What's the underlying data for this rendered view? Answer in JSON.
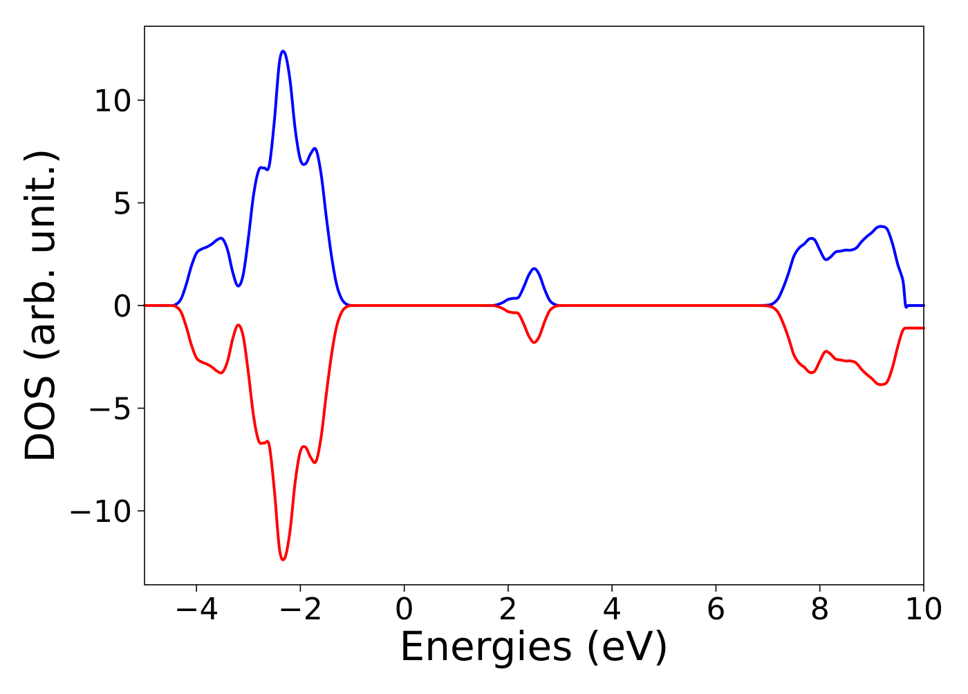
{
  "chart_data": {
    "type": "line",
    "title": "",
    "xlabel": "Energies (eV)",
    "ylabel": "DOS (arb. unit.)",
    "xlim": [
      -5,
      10
    ],
    "ylim": [
      -13.6,
      13.6
    ],
    "grid": false,
    "legend": "none",
    "x_ticks": [
      -4,
      -2,
      0,
      2,
      4,
      6,
      8,
      10
    ],
    "x_tick_labels": [
      "−4",
      "−2",
      "0",
      "2",
      "4",
      "6",
      "8",
      "10"
    ],
    "y_ticks": [
      -10,
      -5,
      0,
      5,
      10
    ],
    "y_tick_labels": [
      "−10",
      "−5",
      "0",
      "5",
      "10"
    ],
    "series": [
      {
        "color": "#0000ff",
        "x": [
          -5.0,
          -4.5,
          -4.4,
          -4.3,
          -4.2,
          -4.1,
          -4.0,
          -3.9,
          -3.8,
          -3.7,
          -3.6,
          -3.5,
          -3.4,
          -3.3,
          -3.2,
          -3.1,
          -3.0,
          -2.9,
          -2.8,
          -2.7,
          -2.6,
          -2.5,
          -2.4,
          -2.3,
          -2.2,
          -2.1,
          -2.0,
          -1.9,
          -1.8,
          -1.7,
          -1.6,
          -1.5,
          -1.4,
          -1.3,
          -1.2,
          -1.1,
          -1.0,
          -0.9,
          -0.8,
          -0.7,
          -0.6,
          -0.5,
          0.0,
          1.0,
          1.5,
          1.7,
          1.8,
          1.9,
          2.0,
          2.1,
          2.2,
          2.3,
          2.4,
          2.5,
          2.6,
          2.7,
          2.8,
          2.9,
          3.0,
          3.1,
          3.2,
          3.3,
          4.0,
          5.0,
          6.0,
          6.8,
          7.0,
          7.1,
          7.2,
          7.3,
          7.4,
          7.5,
          7.6,
          7.7,
          7.8,
          7.9,
          8.0,
          8.1,
          8.2,
          8.3,
          8.4,
          8.5,
          8.6,
          8.7,
          8.8,
          8.9,
          9.0,
          9.1,
          9.2,
          9.3,
          9.4,
          9.5,
          9.6,
          9.65,
          9.7,
          9.8,
          9.9,
          10.0
        ],
        "y": [
          0.0,
          0.0,
          0.05,
          0.3,
          1.0,
          1.9,
          2.55,
          2.75,
          2.85,
          3.0,
          3.2,
          3.25,
          2.7,
          1.6,
          0.95,
          1.5,
          3.3,
          5.4,
          6.6,
          6.7,
          6.8,
          9.0,
          11.9,
          12.3,
          11.0,
          8.6,
          7.1,
          6.9,
          7.4,
          7.6,
          6.4,
          4.3,
          2.4,
          1.0,
          0.3,
          0.05,
          0.0,
          0.0,
          0.0,
          0.0,
          0.0,
          0.0,
          0.0,
          0.0,
          0.0,
          0.0,
          0.05,
          0.15,
          0.3,
          0.35,
          0.4,
          0.9,
          1.5,
          1.8,
          1.5,
          0.8,
          0.25,
          0.05,
          0.0,
          0.0,
          0.0,
          0.0,
          0.0,
          0.0,
          0.0,
          0.0,
          0.02,
          0.1,
          0.35,
          0.9,
          1.6,
          2.4,
          2.8,
          3.0,
          3.25,
          3.2,
          2.7,
          2.25,
          2.35,
          2.6,
          2.65,
          2.7,
          2.7,
          2.8,
          3.1,
          3.35,
          3.55,
          3.8,
          3.85,
          3.7,
          3.0,
          2.0,
          1.2,
          0.0,
          0.0,
          0.0,
          0.0,
          0.0
        ],
        "y_fixed": [
          0.0,
          0.0,
          0.05,
          0.3,
          1.0,
          1.9,
          2.55,
          2.75,
          2.85,
          3.0,
          3.2,
          3.25,
          2.7,
          1.6,
          0.95,
          1.5,
          3.3,
          5.4,
          6.6,
          6.7,
          6.8,
          9.0,
          11.9,
          12.3,
          11.0,
          8.6,
          7.1,
          6.9,
          7.4,
          7.6,
          6.4,
          4.3,
          2.4,
          1.0,
          0.3,
          0.05,
          0.0,
          0.0,
          0.0,
          0.0,
          0.0,
          0.0,
          0.0,
          0.0,
          0.0,
          0.0,
          0.05,
          0.15,
          0.3,
          0.35,
          0.4,
          0.9,
          1.5,
          1.8,
          1.5,
          0.8,
          0.25,
          0.05,
          0.0,
          0.0,
          0.0,
          0.0,
          0.0,
          0.0,
          0.0,
          0.0,
          0.02,
          0.1,
          0.35,
          0.9,
          1.6,
          2.4,
          2.8,
          3.0,
          3.25,
          3.2,
          2.7,
          2.25,
          2.35,
          2.6,
          2.65,
          2.7,
          2.7,
          2.8,
          3.1,
          3.35,
          3.55,
          3.8,
          3.85,
          3.7,
          3.0,
          2.0,
          1.2,
          0.0,
          0.0,
          0.0,
          0.0,
          0.0
        ]
      },
      {
        "color": "#ff0000",
        "x": [
          -5.0,
          -4.5,
          -4.4,
          -4.3,
          -4.2,
          -4.1,
          -4.0,
          -3.9,
          -3.8,
          -3.7,
          -3.6,
          -3.5,
          -3.4,
          -3.3,
          -3.2,
          -3.1,
          -3.0,
          -2.9,
          -2.8,
          -2.7,
          -2.6,
          -2.5,
          -2.4,
          -2.3,
          -2.2,
          -2.1,
          -2.0,
          -1.9,
          -1.8,
          -1.7,
          -1.6,
          -1.5,
          -1.4,
          -1.3,
          -1.2,
          -1.1,
          -1.0,
          -0.9,
          -0.8,
          -0.7,
          -0.6,
          -0.5,
          0.0,
          1.0,
          1.5,
          1.7,
          1.8,
          1.9,
          2.0,
          2.1,
          2.2,
          2.3,
          2.4,
          2.5,
          2.6,
          2.7,
          2.8,
          2.9,
          3.0,
          3.1,
          3.2,
          3.3,
          4.0,
          5.0,
          6.0,
          6.8,
          7.0,
          7.1,
          7.2,
          7.3,
          7.4,
          7.5,
          7.6,
          7.7,
          7.8,
          7.9,
          8.0,
          8.1,
          8.2,
          8.3,
          8.4,
          8.5,
          8.6,
          8.7,
          8.8,
          8.9,
          9.0,
          9.1,
          9.2,
          9.3,
          9.4,
          9.5,
          9.6,
          9.7,
          9.8,
          9.9,
          10.0
        ],
        "y": [
          0.0,
          0.0,
          -0.05,
          -0.3,
          -1.0,
          -1.9,
          -2.55,
          -2.75,
          -2.85,
          -3.0,
          -3.2,
          -3.25,
          -2.7,
          -1.6,
          -0.95,
          -1.5,
          -3.3,
          -5.4,
          -6.6,
          -6.7,
          -6.8,
          -9.0,
          -11.9,
          -12.3,
          -11.0,
          -8.6,
          -7.1,
          -6.9,
          -7.4,
          -7.6,
          -6.4,
          -4.3,
          -2.4,
          -1.0,
          -0.3,
          -0.05,
          0.0,
          0.0,
          0.0,
          0.0,
          0.0,
          0.0,
          0.0,
          0.0,
          0.0,
          0.0,
          -0.05,
          -0.15,
          -0.3,
          -0.35,
          -0.4,
          -0.9,
          -1.5,
          -1.8,
          -1.5,
          -0.8,
          -0.25,
          -0.05,
          0.0,
          0.0,
          0.0,
          0.0,
          0.0,
          0.0,
          0.0,
          0.0,
          -0.02,
          -0.1,
          -0.35,
          -0.9,
          -1.6,
          -2.4,
          -2.8,
          -3.0,
          -3.25,
          -3.2,
          -2.7,
          -2.25,
          -2.35,
          -2.6,
          -2.65,
          -2.7,
          -2.7,
          -2.8,
          -3.1,
          -3.35,
          -3.55,
          -3.8,
          -3.85,
          -3.7,
          -3.0,
          -2.0,
          -1.2,
          -1.1,
          -1.1,
          -1.1,
          -1.1
        ]
      }
    ]
  }
}
